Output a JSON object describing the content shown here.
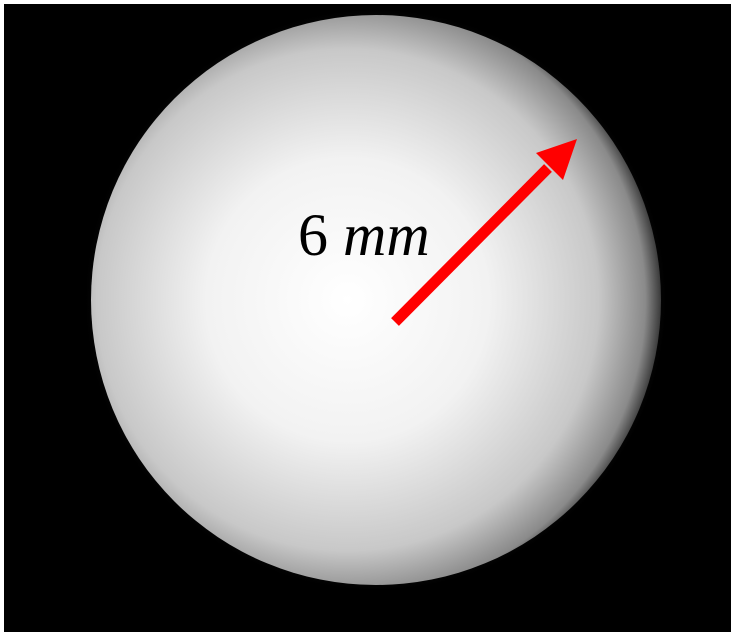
{
  "image": {
    "label": {
      "number": "6",
      "unit": "mm"
    }
  }
}
